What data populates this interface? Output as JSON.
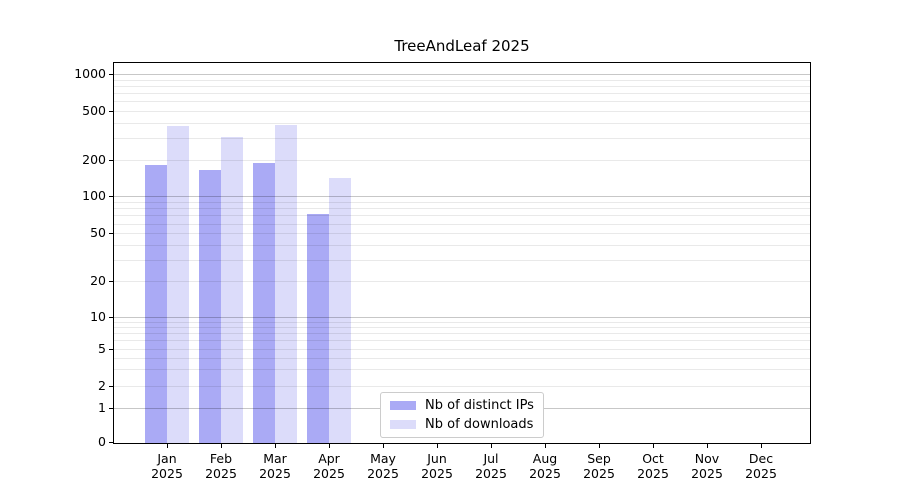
{
  "title": "TreeAndLeaf 2025",
  "legend": {
    "items": [
      {
        "label": "Nb of distinct IPs",
        "color": "#aaaaf5"
      },
      {
        "label": "Nb of downloads",
        "color": "#dcdcfa"
      }
    ]
  },
  "y_axis": {
    "tick_labels": [
      "0",
      "1",
      "2",
      "5",
      "10",
      "20",
      "50",
      "100",
      "200",
      "500",
      "1000"
    ],
    "tick_values": [
      0,
      1,
      2,
      5,
      10,
      20,
      50,
      100,
      200,
      500,
      1000
    ]
  },
  "x_axis": {
    "months": [
      "Jan",
      "Feb",
      "Mar",
      "Apr",
      "May",
      "Jun",
      "Jul",
      "Aug",
      "Sep",
      "Oct",
      "Nov",
      "Dec"
    ],
    "year": "2025"
  },
  "chart_data": {
    "type": "bar",
    "title": "TreeAndLeaf 2025",
    "categories": [
      "Jan 2025",
      "Feb 2025",
      "Mar 2025",
      "Apr 2025",
      "May 2025",
      "Jun 2025",
      "Jul 2025",
      "Aug 2025",
      "Sep 2025",
      "Oct 2025",
      "Nov 2025",
      "Dec 2025"
    ],
    "series": [
      {
        "name": "Nb of distinct IPs",
        "color": "#aaaaf5",
        "values": [
          181,
          163,
          186,
          72,
          null,
          null,
          null,
          null,
          null,
          null,
          null,
          null
        ]
      },
      {
        "name": "Nb of downloads",
        "color": "#dcdcfa",
        "values": [
          375,
          305,
          382,
          140,
          null,
          null,
          null,
          null,
          null,
          null,
          null,
          null
        ]
      }
    ],
    "yscale": "symlog",
    "yticks": [
      0,
      1,
      2,
      5,
      10,
      20,
      50,
      100,
      200,
      500,
      1000
    ],
    "ylim": [
      0,
      1100
    ],
    "grid": "horizontal major and minor gridlines, drawn over bars",
    "legend_position": "lower center inside plot"
  }
}
